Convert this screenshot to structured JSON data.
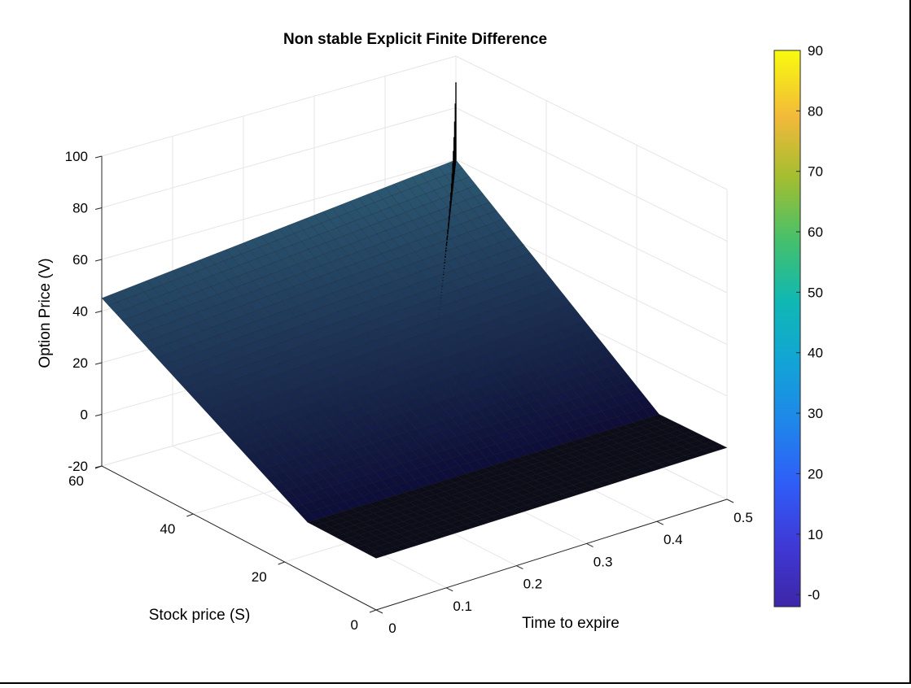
{
  "chart_data": {
    "type": "surface",
    "title": "Non stable Explicit Finite Difference",
    "xlabel": "Time to expire",
    "ylabel": "Stock price (S)",
    "zlabel": "Option Price (V)",
    "x_ticks": [
      "0",
      "0.1",
      "0.2",
      "0.3",
      "0.4",
      "0.5"
    ],
    "x_tick_values": [
      0,
      0.1,
      0.2,
      0.3,
      0.4,
      0.5
    ],
    "y_ticks": [
      "0",
      "20",
      "40",
      "60"
    ],
    "y_tick_values": [
      0,
      20,
      40,
      60
    ],
    "z_ticks": [
      "-20",
      "0",
      "20",
      "40",
      "60",
      "80",
      "100"
    ],
    "z_tick_values": [
      -20,
      0,
      20,
      40,
      60,
      80,
      100
    ],
    "xlim": [
      0,
      0.5
    ],
    "ylim": [
      0,
      60
    ],
    "zlim": [
      -20,
      100
    ],
    "grid": true,
    "colormap": "parula",
    "colorbar": {
      "position": "right",
      "ticks": [
        "-0",
        "10",
        "20",
        "30",
        "40",
        "50",
        "60",
        "70",
        "80",
        "90"
      ],
      "tick_values": [
        0,
        10,
        20,
        30,
        40,
        50,
        60,
        70,
        80,
        90
      ],
      "range": [
        -2,
        90
      ]
    },
    "surface": {
      "description_points": [
        {
          "t": 0.0,
          "S": 60,
          "V": 45
        },
        {
          "t": 0.5,
          "S": 60,
          "V": 60
        },
        {
          "t": 0.0,
          "S": 15,
          "V": 0
        },
        {
          "t": 0.5,
          "S": 0,
          "V": 0
        }
      ],
      "strike_like_kink_S": 15,
      "oscillation_peak": {
        "t": 0.5,
        "S": 60,
        "V": 90
      }
    }
  },
  "colors": {
    "background": "#ffffff",
    "axis": "#262626",
    "grid": "#e6e6e6",
    "surface_low": "#0d0d1a",
    "surface_high": "#3fa5a0"
  }
}
